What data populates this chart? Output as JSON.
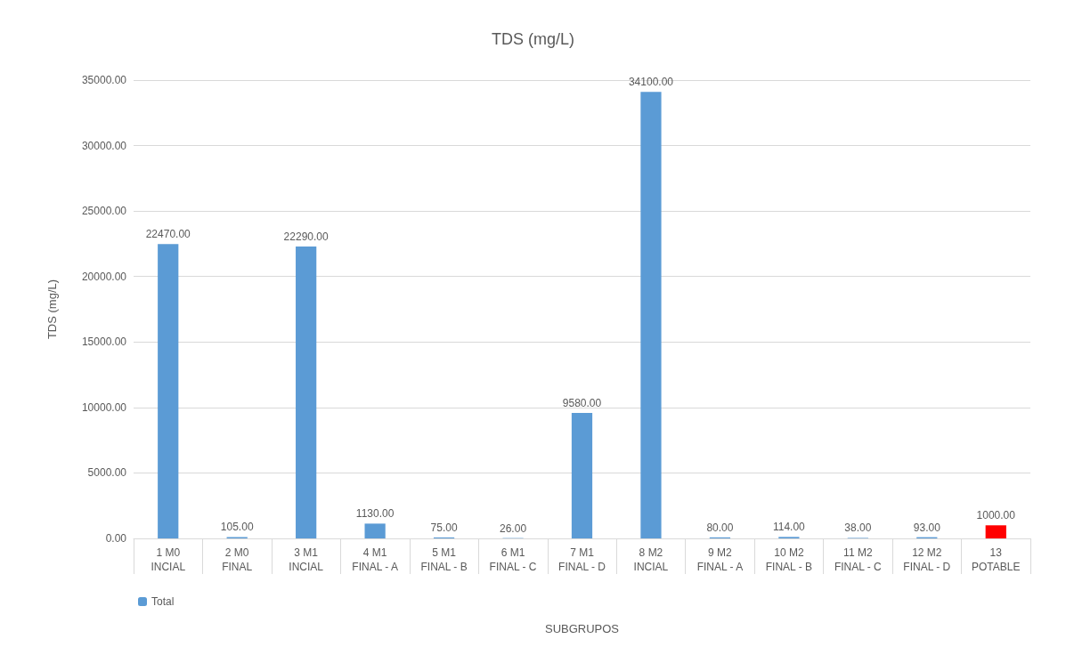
{
  "chart_data": {
    "type": "bar",
    "title": "TDS (mg/L)",
    "xlabel": "SUBGRUPOS",
    "ylabel": "TDS (mg/L)",
    "categories": [
      "1 M0\nINCIAL",
      "2 M0\nFINAL",
      "3 M1\nINCIAL",
      "4 M1\nFINAL - A",
      "5 M1\nFINAL - B",
      "6 M1\nFINAL - C",
      "7 M1\nFINAL - D",
      "8 M2\nINCIAL",
      "9 M2\nFINAL - A",
      "10 M2\nFINAL - B",
      "11 M2\nFINAL - C",
      "12 M2\nFINAL - D",
      "13\nPOTABLE"
    ],
    "series": [
      {
        "name": "Total",
        "color": "#5b9bd5",
        "values": [
          22470,
          105,
          22290,
          1130,
          75,
          26,
          9580,
          34100,
          80,
          114,
          38,
          93,
          1000
        ],
        "colors": [
          "#5b9bd5",
          "#5b9bd5",
          "#5b9bd5",
          "#5b9bd5",
          "#5b9bd5",
          "#5b9bd5",
          "#5b9bd5",
          "#5b9bd5",
          "#5b9bd5",
          "#5b9bd5",
          "#5b9bd5",
          "#5b9bd5",
          "#ff0000"
        ],
        "value_labels": [
          "22470.00",
          "105.00",
          "22290.00",
          "1130.00",
          "75.00",
          "26.00",
          "9580.00",
          "34100.00",
          "80.00",
          "114.00",
          "38.00",
          "93.00",
          "1000.00"
        ]
      }
    ],
    "ylim": [
      0,
      35000
    ],
    "yticks": [
      {
        "value": 0,
        "label": "0.00"
      },
      {
        "value": 5000,
        "label": "5000.00"
      },
      {
        "value": 10000,
        "label": "10000.00"
      },
      {
        "value": 15000,
        "label": "15000.00"
      },
      {
        "value": 20000,
        "label": "20000.00"
      },
      {
        "value": 25000,
        "label": "25000.00"
      },
      {
        "value": 30000,
        "label": "30000.00"
      },
      {
        "value": 35000,
        "label": "35000.00"
      }
    ],
    "grid": "y",
    "legend": "bottom left"
  }
}
